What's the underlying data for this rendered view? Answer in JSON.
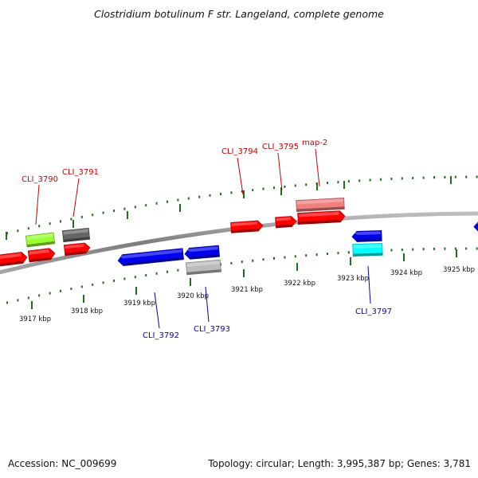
{
  "title": "Clostridium botulinum F str. Langeland, complete genome",
  "footer": {
    "accession": "Accession: NC_009699",
    "topology": "Topology: circular; Length: 3,995,387 bp; Genes: 3,781"
  },
  "colors": {
    "backbone": "#8a8a8a",
    "tick": "#1e6e1e",
    "forward_label": "#cc0000",
    "reverse_label": "#0000bb"
  },
  "scale_labels": [
    "3917 kbp",
    "3918 kbp",
    "3919 kbp",
    "3920 kbp",
    "3921 kbp",
    "3922 kbp",
    "3923 kbp",
    "3924 kbp",
    "3925 kbp"
  ],
  "gene_labels": [
    {
      "text": "CLI_3790",
      "strand": "forward"
    },
    {
      "text": "CLI_3791",
      "strand": "forward"
    },
    {
      "text": "CLI_3794",
      "strand": "forward"
    },
    {
      "text": "CLI_3795",
      "strand": "forward"
    },
    {
      "text": "map-2",
      "strand": "forward"
    },
    {
      "text": "CLI_3792",
      "strand": "reverse"
    },
    {
      "text": "CLI_3793",
      "strand": "reverse"
    },
    {
      "text": "CLI_3797",
      "strand": "reverse"
    }
  ],
  "features": [
    {
      "strand": "forward",
      "color": "#ff0000",
      "dir": "right"
    },
    {
      "strand": "forward",
      "color": "#ff0000",
      "dir": "right"
    },
    {
      "strand": "forward",
      "color": "#ff0000",
      "dir": "right"
    },
    {
      "strand": "forward",
      "color": "#ff0000",
      "dir": "right"
    },
    {
      "strand": "forward",
      "color": "#ff0000",
      "dir": "right"
    },
    {
      "strand": "forward",
      "color": "#ff0000",
      "dir": "right"
    },
    {
      "strand": "forward",
      "color": "#99ff33",
      "dir": "none"
    },
    {
      "strand": "forward",
      "color": "#666666",
      "dir": "none"
    },
    {
      "strand": "forward",
      "color": "#f08080",
      "dir": "none"
    },
    {
      "strand": "reverse",
      "color": "#0000ee",
      "dir": "left"
    },
    {
      "strand": "reverse",
      "color": "#0000ee",
      "dir": "left"
    },
    {
      "strand": "reverse",
      "color": "#0000ee",
      "dir": "left"
    },
    {
      "strand": "reverse",
      "color": "#0000ee",
      "dir": "left"
    },
    {
      "strand": "reverse",
      "color": "#bbbbbb",
      "dir": "none"
    },
    {
      "strand": "reverse",
      "color": "#00ffff",
      "dir": "none"
    }
  ]
}
